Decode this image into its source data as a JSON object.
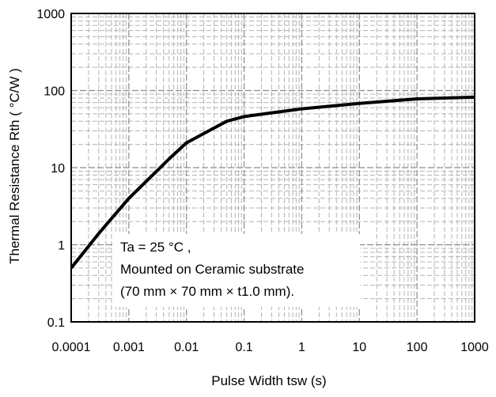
{
  "chart_data": {
    "type": "line",
    "title": "",
    "xlabel": "Pulse Width tsw (s)",
    "ylabel": "Thermal Resistance Rth ( °C/W )",
    "x_scale": "log",
    "y_scale": "log",
    "xlim": [
      0.0001,
      1000
    ],
    "ylim": [
      0.1,
      1000
    ],
    "x_ticks": [
      "0.0001",
      "0.001",
      "0.01",
      "0.1",
      "1",
      "10",
      "100",
      "1000"
    ],
    "y_ticks": [
      "0.1",
      "1",
      "10",
      "100",
      "1000"
    ],
    "grid": true,
    "grid_style": "dashed",
    "legend": "none",
    "series": [
      {
        "color": "#000000",
        "x": [
          0.0001,
          0.0003,
          0.001,
          0.005,
          0.01,
          0.05,
          0.1,
          1,
          10,
          100,
          1000
        ],
        "y": [
          0.5,
          1.4,
          4.0,
          13.0,
          21.0,
          40.0,
          46.0,
          58.0,
          68.0,
          78.0,
          82.0
        ]
      }
    ],
    "annotation": {
      "lines": [
        "Ta = 25 °C ,",
        "Mounted on Ceramic substrate",
        "(70 mm × 70 mm × t1.0 mm)."
      ],
      "position": "bottom-left"
    }
  }
}
